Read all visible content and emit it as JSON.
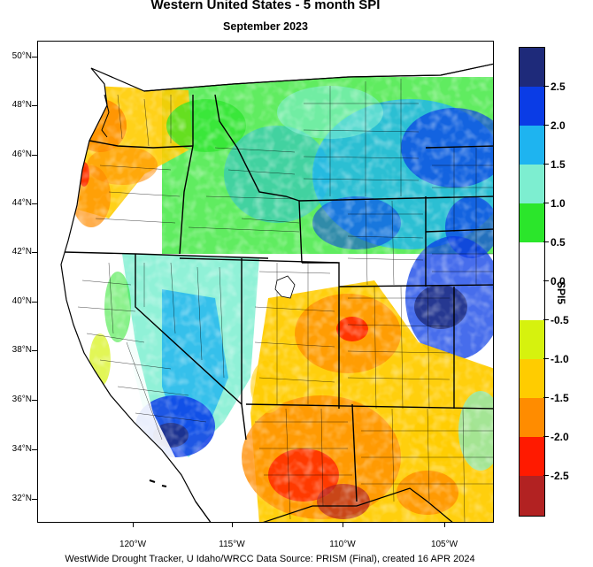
{
  "title": "Western United States - 5 month SPI",
  "subtitle": "September 2023",
  "footer": "WestWide Drought Tracker, U Idaho/WRCC Data Source: PRISM (Final), created 16 APR 2024",
  "lat_labels": [
    "50°N",
    "48°N",
    "46°N",
    "44°N",
    "42°N",
    "40°N",
    "38°N",
    "36°N",
    "34°N",
    "32°N"
  ],
  "lon_labels": [
    "120°W",
    "115°W",
    "110°W",
    "105°W"
  ],
  "legend": {
    "title": "SPI5",
    "labels": [
      "2.5",
      "2.0",
      "1.5",
      "1.0",
      "0.5",
      "0.0",
      "-0.5",
      "-1.0",
      "-1.5",
      "-2.0",
      "-2.5"
    ],
    "colors": [
      "#1e2a7a",
      "#0a3ce6",
      "#1eb4f0",
      "#7deed0",
      "#2be62b",
      "#ffffff",
      "#ffffff",
      "#d6f20e",
      "#ffcc00",
      "#ff8c00",
      "#ff1a00",
      "#b22222"
    ]
  },
  "regions": {
    "pacific_northwest": "dry",
    "central_rockies": "wet",
    "southwest": "dry",
    "nevada_desert": "wet",
    "front_range": "very wet"
  }
}
